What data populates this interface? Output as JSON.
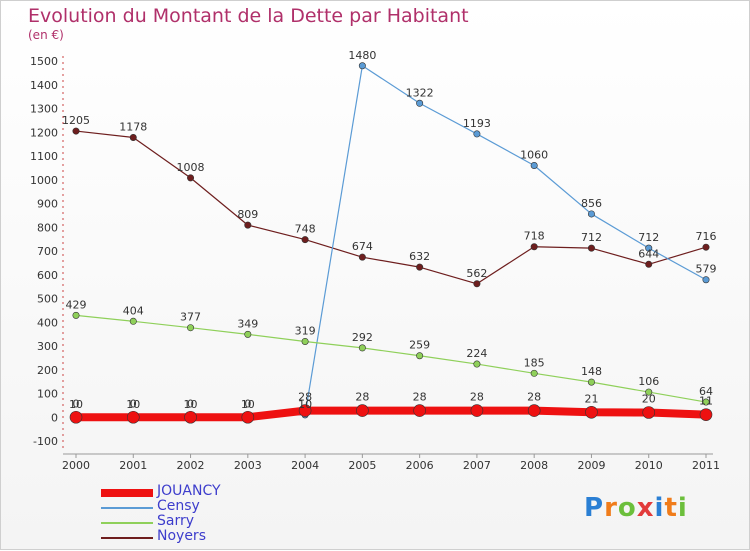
{
  "header": {
    "title": "Evolution du Montant de la Dette par Habitant",
    "subtitle": "(en €)"
  },
  "logo": {
    "text": "Proxiti"
  },
  "chart_data": {
    "type": "line",
    "title": "Evolution du Montant de la Dette par Habitant",
    "subtitle": "(en €)",
    "categories": [
      "2000",
      "2001",
      "2002",
      "2003",
      "2004",
      "2005",
      "2006",
      "2007",
      "2008",
      "2009",
      "2010",
      "2011"
    ],
    "ylim": [
      -100,
      1500
    ],
    "yticks": [
      "-100",
      "0",
      "100",
      "200",
      "300",
      "400",
      "500",
      "600",
      "700",
      "800",
      "900",
      "1000",
      "1100",
      "1200",
      "1300",
      "1400",
      "1500"
    ],
    "grid": false,
    "legend_position": "bottom-left",
    "series": [
      {
        "name": "Noyers",
        "color": "#6e1e1e",
        "values": [
          1205,
          1178,
          1008,
          809,
          748,
          674,
          632,
          562,
          718,
          712,
          644,
          716
        ],
        "labels": [
          "1205",
          "1178",
          "1008",
          "809",
          "748",
          "674",
          "632",
          "562",
          "718",
          "712",
          "644",
          "716"
        ]
      },
      {
        "name": "Censy",
        "color": "#5b9bd5",
        "values": [
          10,
          10,
          10,
          10,
          10,
          1480,
          1322,
          1193,
          1060,
          856,
          712,
          579
        ],
        "labels": [
          "10",
          "10",
          "10",
          "10",
          "10",
          "1480",
          "1322",
          "1193",
          "1060",
          "856",
          "712",
          "579"
        ]
      },
      {
        "name": "Sarry",
        "color": "#8fd05a",
        "values": [
          429,
          404,
          377,
          349,
          319,
          292,
          259,
          224,
          185,
          148,
          106,
          64
        ],
        "labels": [
          "429",
          "404",
          "377",
          "349",
          "319",
          "292",
          "259",
          "224",
          "185",
          "148",
          "106",
          "64"
        ]
      },
      {
        "name": "JOUANCY",
        "color": "#ee1111",
        "values": [
          0,
          0,
          0,
          0,
          28,
          28,
          28,
          28,
          28,
          21,
          20,
          11
        ],
        "labels": [
          "0",
          "0",
          "0",
          "0",
          "28",
          "28",
          "28",
          "28",
          "28",
          "21",
          "20",
          "11"
        ]
      }
    ]
  }
}
